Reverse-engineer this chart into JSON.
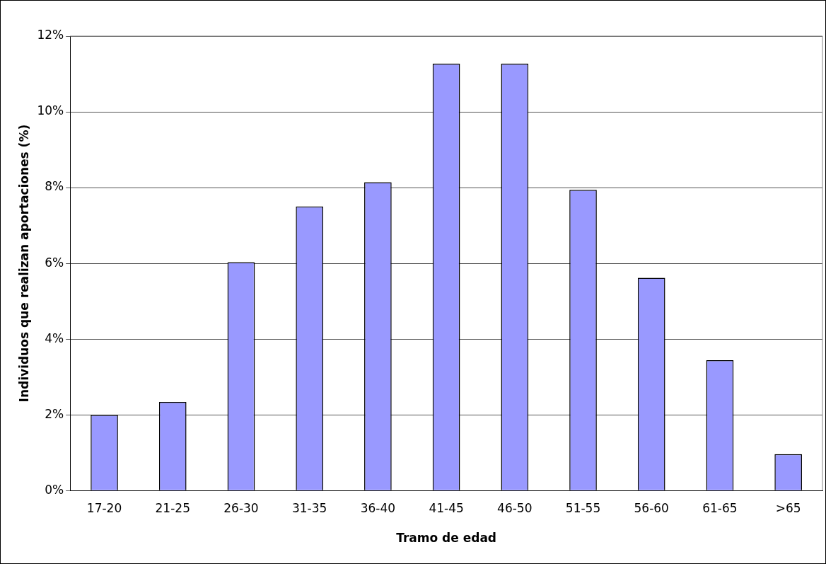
{
  "chart_data": {
    "type": "bar",
    "xlabel": "Tramo de edad",
    "ylabel": "Individuos que realizan aportaciones (%)",
    "categories": [
      "17-20",
      "21-25",
      "26-30",
      "31-35",
      "36-40",
      "41-45",
      "46-50",
      "51-55",
      "56-60",
      "61-65",
      ">65"
    ],
    "values": [
      2.0,
      2.34,
      6.03,
      7.5,
      8.14,
      11.27,
      11.27,
      7.94,
      5.62,
      3.44,
      0.96
    ],
    "color": "#9999ff",
    "ylim": [
      0,
      12
    ],
    "yticks": [
      {
        "value": 0,
        "label": "0%"
      },
      {
        "value": 2,
        "label": "2%"
      },
      {
        "value": 4,
        "label": "4%"
      },
      {
        "value": 6,
        "label": "6%"
      },
      {
        "value": 8,
        "label": "8%"
      },
      {
        "value": 10,
        "label": "10%"
      },
      {
        "value": 12,
        "label": "12%"
      }
    ],
    "grid": "y",
    "legend": false
  }
}
